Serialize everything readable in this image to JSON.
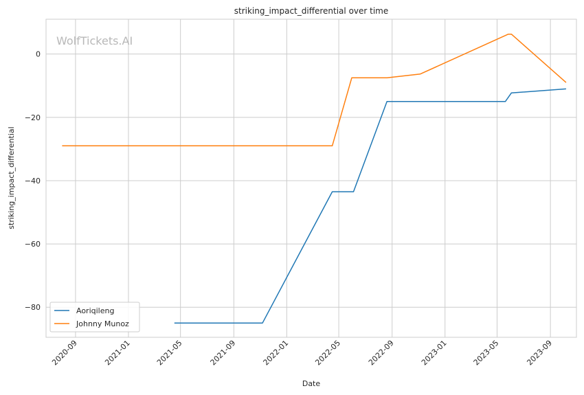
{
  "chart_data": {
    "type": "line",
    "title": "striking_impact_differential over time",
    "xlabel": "Date",
    "ylabel": "striking_impact_differential",
    "watermark": "WolfTickets.AI",
    "x_ticks": [
      "2020-09",
      "2021-01",
      "2021-05",
      "2021-09",
      "2022-01",
      "2022-05",
      "2022-09",
      "2023-01",
      "2023-05",
      "2023-09"
    ],
    "y_ticks": [
      0,
      -20,
      -40,
      -60,
      -80
    ],
    "xlim": [
      "2020-06-25",
      "2023-10-31"
    ],
    "ylim": [
      -89.5,
      11
    ],
    "grid": true,
    "legend_position": "lower-left",
    "series": [
      {
        "name": "Aoriqileng",
        "color": "#1f77b4",
        "points": [
          {
            "x": "2021-04-17",
            "y": -85
          },
          {
            "x": "2021-11-06",
            "y": -85
          },
          {
            "x": "2022-04-16",
            "y": -43.5
          },
          {
            "x": "2022-06-04",
            "y": -43.5
          },
          {
            "x": "2022-08-20",
            "y": -15
          },
          {
            "x": "2023-05-20",
            "y": -15
          },
          {
            "x": "2023-06-03",
            "y": -12.3
          },
          {
            "x": "2023-10-07",
            "y": -11
          }
        ]
      },
      {
        "name": "Johnny Munoz",
        "color": "#ff7f0e",
        "points": [
          {
            "x": "2020-08-01",
            "y": -29
          },
          {
            "x": "2022-04-16",
            "y": -29
          },
          {
            "x": "2022-05-31",
            "y": -7.5
          },
          {
            "x": "2022-08-20",
            "y": -7.5
          },
          {
            "x": "2022-11-05",
            "y": -6.3
          },
          {
            "x": "2023-05-27",
            "y": 6.3
          },
          {
            "x": "2023-06-03",
            "y": 6.3
          },
          {
            "x": "2023-10-07",
            "y": -9
          }
        ]
      }
    ]
  }
}
